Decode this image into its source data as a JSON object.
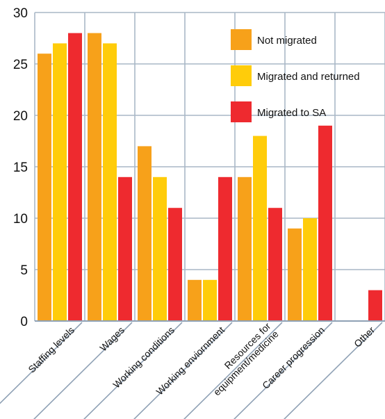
{
  "chart_data": {
    "type": "bar",
    "categories": [
      "Staffing levels",
      "Wages",
      "Working conditions",
      "Working enviornment",
      "Resources for equipment/medicine",
      "Career progression",
      "Other"
    ],
    "category_lines": [
      [
        "Staffing levels"
      ],
      [
        "Wages"
      ],
      [
        "Working conditions"
      ],
      [
        "Working enviornment"
      ],
      [
        "Resources for",
        "equipment/medicine"
      ],
      [
        "Career progression"
      ],
      [
        "Other"
      ]
    ],
    "series": [
      {
        "name": "Not migrated",
        "color": "#F7A11A",
        "values": [
          26,
          28,
          17,
          4,
          14,
          9,
          0
        ]
      },
      {
        "name": "Migrated and returned",
        "color": "#FFCC0A",
        "values": [
          27,
          27,
          14,
          4,
          18,
          10,
          0
        ]
      },
      {
        "name": "Migrated to SA",
        "color": "#EE2A2F",
        "values": [
          28,
          14,
          11,
          14,
          11,
          19,
          3
        ]
      }
    ],
    "y_ticks": [
      "0",
      "5",
      "10",
      "15",
      "20",
      "25",
      "30"
    ],
    "ylim": [
      0,
      30
    ],
    "grid": true,
    "grid_color": "#A9B7C6",
    "axis_color": "#8FA1B5",
    "legend_position": "top-right"
  }
}
